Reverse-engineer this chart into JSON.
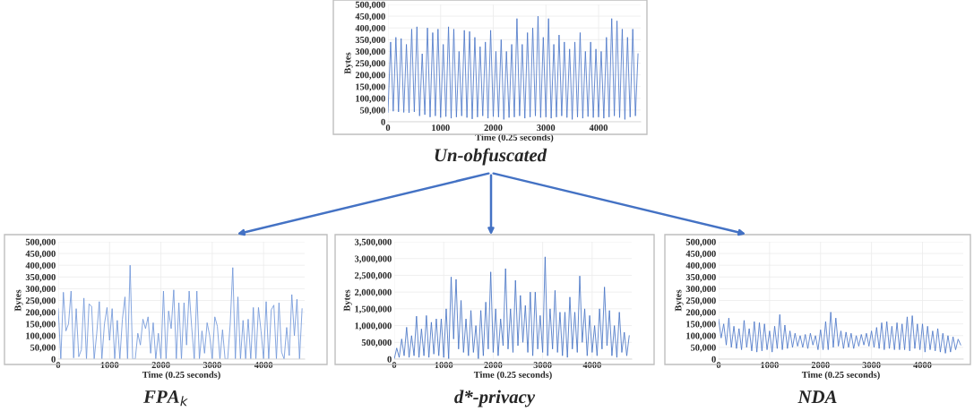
{
  "chart_data": [
    {
      "type": "line",
      "title": "Un-obfuscated",
      "xlabel": "Time (0.25 seconds)",
      "ylabel": "Bytes",
      "grid": true,
      "xlim": [
        0,
        4800
      ],
      "ylim": [
        0,
        500000
      ],
      "xticks": [
        0,
        1000,
        2000,
        3000,
        4000
      ],
      "yticks": [
        {
          "value": 0,
          "label": "0"
        },
        {
          "value": 50000,
          "label": "50,000"
        },
        {
          "value": 100000,
          "label": "100,000"
        },
        {
          "value": 150000,
          "label": "150,000"
        },
        {
          "value": 200000,
          "label": "200,000"
        },
        {
          "value": 250000,
          "label": "250,000"
        },
        {
          "value": 300000,
          "label": "300,000"
        },
        {
          "value": 350000,
          "label": "350,000"
        },
        {
          "value": 400000,
          "label": "400,000"
        },
        {
          "value": 450000,
          "label": "450,000"
        },
        {
          "value": 500000,
          "label": "500,000"
        }
      ],
      "x": [
        0,
        50,
        100,
        150,
        200,
        250,
        300,
        350,
        400,
        450,
        500,
        550,
        600,
        650,
        700,
        750,
        800,
        850,
        900,
        950,
        1000,
        1050,
        1100,
        1150,
        1200,
        1250,
        1300,
        1350,
        1400,
        1450,
        1500,
        1550,
        1600,
        1650,
        1700,
        1750,
        1800,
        1850,
        1900,
        1950,
        2000,
        2050,
        2100,
        2150,
        2200,
        2250,
        2300,
        2350,
        2400,
        2450,
        2500,
        2550,
        2600,
        2650,
        2700,
        2750,
        2800,
        2850,
        2900,
        2950,
        3000,
        3050,
        3100,
        3150,
        3200,
        3250,
        3300,
        3350,
        3400,
        3450,
        3500,
        3550,
        3600,
        3650,
        3700,
        3750,
        3800,
        3850,
        3900,
        3950,
        4000,
        4050,
        4100,
        4150,
        4200,
        4250,
        4300,
        4350,
        4400,
        4450,
        4500,
        4550,
        4600,
        4650,
        4700,
        4750
      ],
      "series": [
        {
          "color": "#4a76c8",
          "values": [
            40000,
            340000,
            45000,
            360000,
            42000,
            355000,
            40000,
            330000,
            38000,
            395000,
            42000,
            405000,
            25000,
            290000,
            30000,
            400000,
            20000,
            380000,
            25000,
            395000,
            18000,
            330000,
            22000,
            405000,
            15000,
            395000,
            20000,
            300000,
            25000,
            390000,
            18000,
            385000,
            12000,
            360000,
            20000,
            320000,
            25000,
            340000,
            15000,
            390000,
            22000,
            300000,
            20000,
            350000,
            10000,
            300000,
            18000,
            330000,
            20000,
            440000,
            25000,
            330000,
            15000,
            380000,
            20000,
            400000,
            25000,
            450000,
            18000,
            360000,
            20000,
            440000,
            15000,
            330000,
            20000,
            370000,
            25000,
            340000,
            18000,
            310000,
            10000,
            340000,
            20000,
            380000,
            15000,
            300000,
            22000,
            340000,
            18000,
            310000,
            20000,
            300000,
            15000,
            360000,
            20000,
            440000,
            25000,
            430000,
            18000,
            395000,
            10000,
            360000,
            20000,
            395000,
            25000,
            290000
          ]
        }
      ]
    },
    {
      "type": "line",
      "title": "FPA$_{k}$",
      "xlabel": "Time (0.25 seconds)",
      "ylabel": "Bytes",
      "grid": true,
      "xlim": [
        0,
        4800
      ],
      "ylim": [
        0,
        500000
      ],
      "xticks": [
        0,
        1000,
        2000,
        3000,
        4000
      ],
      "yticks": [
        {
          "value": 0,
          "label": "0"
        },
        {
          "value": 50000,
          "label": "50,000"
        },
        {
          "value": 100000,
          "label": "100,000"
        },
        {
          "value": 150000,
          "label": "150,000"
        },
        {
          "value": 200000,
          "label": "200,000"
        },
        {
          "value": 250000,
          "label": "250,000"
        },
        {
          "value": 300000,
          "label": "300,000"
        },
        {
          "value": 350000,
          "label": "350,000"
        },
        {
          "value": 400000,
          "label": "400,000"
        },
        {
          "value": 450000,
          "label": "450,000"
        },
        {
          "value": 500000,
          "label": "500,000"
        }
      ],
      "x": [
        0,
        50,
        100,
        150,
        200,
        250,
        300,
        350,
        400,
        450,
        500,
        550,
        600,
        650,
        700,
        750,
        800,
        850,
        900,
        950,
        1000,
        1050,
        1100,
        1150,
        1200,
        1250,
        1300,
        1350,
        1400,
        1450,
        1500,
        1550,
        1600,
        1650,
        1700,
        1750,
        1800,
        1850,
        1900,
        1950,
        2000,
        2050,
        2100,
        2150,
        2200,
        2250,
        2300,
        2350,
        2400,
        2450,
        2500,
        2550,
        2600,
        2650,
        2700,
        2750,
        2800,
        2850,
        2900,
        2950,
        3000,
        3050,
        3100,
        3150,
        3200,
        3250,
        3300,
        3350,
        3400,
        3450,
        3500,
        3550,
        3600,
        3650,
        3700,
        3750,
        3800,
        3850,
        3900,
        3950,
        4000,
        4050,
        4100,
        4150,
        4200,
        4250,
        4300,
        4350,
        4400,
        4450,
        4500,
        4550,
        4600,
        4650,
        4700,
        4750
      ],
      "series": [
        {
          "color": "#6f95d8",
          "values": [
            215000,
            0,
            285000,
            120000,
            150000,
            290000,
            5000,
            215000,
            10000,
            40000,
            260000,
            0,
            235000,
            225000,
            0,
            110000,
            245000,
            0,
            150000,
            220000,
            80000,
            215000,
            0,
            165000,
            0,
            170000,
            265000,
            0,
            400000,
            0,
            0,
            110000,
            60000,
            170000,
            130000,
            180000,
            25000,
            155000,
            0,
            110000,
            0,
            290000,
            0,
            205000,
            130000,
            295000,
            0,
            240000,
            0,
            240000,
            60000,
            290000,
            135000,
            0,
            290000,
            0,
            120000,
            25000,
            155000,
            100000,
            0,
            180000,
            140000,
            0,
            125000,
            0,
            0,
            150000,
            390000,
            0,
            265000,
            0,
            165000,
            0,
            170000,
            0,
            220000,
            0,
            220000,
            120000,
            0,
            245000,
            0,
            210000,
            230000,
            0,
            240000,
            30000,
            0,
            135000,
            15000,
            275000,
            100000,
            255000,
            0,
            215000
          ]
        }
      ]
    },
    {
      "type": "line",
      "title": "d*-privacy",
      "xlabel": "Time (0.25 seconds)",
      "ylabel": "Bytes",
      "grid": true,
      "xlim": [
        0,
        4800
      ],
      "ylim": [
        0,
        3500000
      ],
      "xticks": [
        0,
        1000,
        2000,
        3000,
        4000
      ],
      "yticks": [
        {
          "value": 0,
          "label": "0"
        },
        {
          "value": 500000,
          "label": "500,000"
        },
        {
          "value": 1000000,
          "label": "1,000,000"
        },
        {
          "value": 1500000,
          "label": "1,500,000"
        },
        {
          "value": 2000000,
          "label": "2,000,000"
        },
        {
          "value": 2500000,
          "label": "2,500,000"
        },
        {
          "value": 3000000,
          "label": "3,000,000"
        },
        {
          "value": 3500000,
          "label": "3,500,000"
        }
      ],
      "x": [
        0,
        50,
        100,
        150,
        200,
        250,
        300,
        350,
        400,
        450,
        500,
        550,
        600,
        650,
        700,
        750,
        800,
        850,
        900,
        950,
        1000,
        1050,
        1100,
        1150,
        1200,
        1250,
        1300,
        1350,
        1400,
        1450,
        1500,
        1550,
        1600,
        1650,
        1700,
        1750,
        1800,
        1850,
        1900,
        1950,
        2000,
        2050,
        2100,
        2150,
        2200,
        2250,
        2300,
        2350,
        2400,
        2450,
        2500,
        2550,
        2600,
        2650,
        2700,
        2750,
        2800,
        2850,
        2900,
        2950,
        3000,
        3050,
        3100,
        3150,
        3200,
        3250,
        3300,
        3350,
        3400,
        3450,
        3500,
        3550,
        3600,
        3650,
        3700,
        3750,
        3800,
        3850,
        3900,
        3950,
        4000,
        4050,
        4100,
        4150,
        4200,
        4250,
        4300,
        4350,
        4400,
        4450,
        4500,
        4550,
        4600,
        4650,
        4700,
        4750
      ],
      "series": [
        {
          "color": "#4472c4",
          "values": [
            0,
            330000,
            50000,
            600000,
            100000,
            950000,
            50000,
            700000,
            100000,
            1280000,
            50000,
            900000,
            100000,
            1300000,
            50000,
            1100000,
            150000,
            1200000,
            100000,
            1200000,
            50000,
            1500000,
            0,
            2450000,
            600000,
            2380000,
            300000,
            1750000,
            200000,
            1200000,
            100000,
            1450000,
            200000,
            1000000,
            0,
            1450000,
            100000,
            1700000,
            300000,
            2600000,
            200000,
            1500000,
            100000,
            1200000,
            400000,
            2700000,
            300000,
            1500000,
            200000,
            2350000,
            400000,
            1900000,
            500000,
            1600000,
            200000,
            2000000,
            100000,
            2000000,
            300000,
            1300000,
            200000,
            3050000,
            100000,
            1500000,
            300000,
            2050000,
            200000,
            1400000,
            100000,
            1400000,
            50000,
            1850000,
            300000,
            1400000,
            200000,
            2480000,
            500000,
            1500000,
            100000,
            1300000,
            200000,
            1000000,
            100000,
            1500000,
            300000,
            2150000,
            400000,
            1450000,
            100000,
            1000000,
            50000,
            1400000,
            200000,
            800000,
            100000,
            700000
          ]
        }
      ]
    },
    {
      "type": "line",
      "title": "NDA",
      "xlabel": "Time (0.25 seconds)",
      "ylabel": "Bytes",
      "grid": true,
      "xlim": [
        0,
        4800
      ],
      "ylim": [
        0,
        500000
      ],
      "xticks": [
        0,
        1000,
        2000,
        3000,
        4000
      ],
      "yticks": [
        {
          "value": 0,
          "label": "0"
        },
        {
          "value": 50000,
          "label": "50,000"
        },
        {
          "value": 100000,
          "label": "100,000"
        },
        {
          "value": 150000,
          "label": "150,000"
        },
        {
          "value": 200000,
          "label": "200,000"
        },
        {
          "value": 250000,
          "label": "250,000"
        },
        {
          "value": 300000,
          "label": "300,000"
        },
        {
          "value": 350000,
          "label": "350,000"
        },
        {
          "value": 400000,
          "label": "400,000"
        },
        {
          "value": 450000,
          "label": "450,000"
        },
        {
          "value": 500000,
          "label": "500,000"
        }
      ],
      "x": [
        0,
        50,
        100,
        150,
        200,
        250,
        300,
        350,
        400,
        450,
        500,
        550,
        600,
        650,
        700,
        750,
        800,
        850,
        900,
        950,
        1000,
        1050,
        1100,
        1150,
        1200,
        1250,
        1300,
        1350,
        1400,
        1450,
        1500,
        1550,
        1600,
        1650,
        1700,
        1750,
        1800,
        1850,
        1900,
        1950,
        2000,
        2050,
        2100,
        2150,
        2200,
        2250,
        2300,
        2350,
        2400,
        2450,
        2500,
        2550,
        2600,
        2650,
        2700,
        2750,
        2800,
        2850,
        2900,
        2950,
        3000,
        3050,
        3100,
        3150,
        3200,
        3250,
        3300,
        3350,
        3400,
        3450,
        3500,
        3550,
        3600,
        3650,
        3700,
        3750,
        3800,
        3850,
        3900,
        3950,
        4000,
        4050,
        4100,
        4150,
        4200,
        4250,
        4300,
        4350,
        4400,
        4450,
        4500,
        4550,
        4600,
        4650,
        4700,
        4750
      ],
      "series": [
        {
          "color": "#4a76c8",
          "values": [
            170000,
            90000,
            150000,
            60000,
            175000,
            50000,
            140000,
            45000,
            130000,
            40000,
            165000,
            50000,
            130000,
            35000,
            160000,
            30000,
            155000,
            35000,
            150000,
            40000,
            120000,
            30000,
            140000,
            45000,
            190000,
            40000,
            145000,
            45000,
            120000,
            50000,
            110000,
            55000,
            100000,
            50000,
            105000,
            45000,
            110000,
            60000,
            100000,
            40000,
            125000,
            40000,
            160000,
            40000,
            200000,
            50000,
            175000,
            55000,
            120000,
            45000,
            115000,
            50000,
            110000,
            45000,
            100000,
            55000,
            105000,
            60000,
            110000,
            55000,
            120000,
            50000,
            135000,
            45000,
            155000,
            40000,
            160000,
            45000,
            140000,
            40000,
            155000,
            40000,
            150000,
            40000,
            180000,
            35000,
            185000,
            45000,
            150000,
            40000,
            150000,
            30000,
            140000,
            40000,
            120000,
            35000,
            130000,
            30000,
            110000,
            25000,
            100000,
            30000,
            95000,
            40000,
            85000,
            60000
          ]
        }
      ]
    }
  ]
}
